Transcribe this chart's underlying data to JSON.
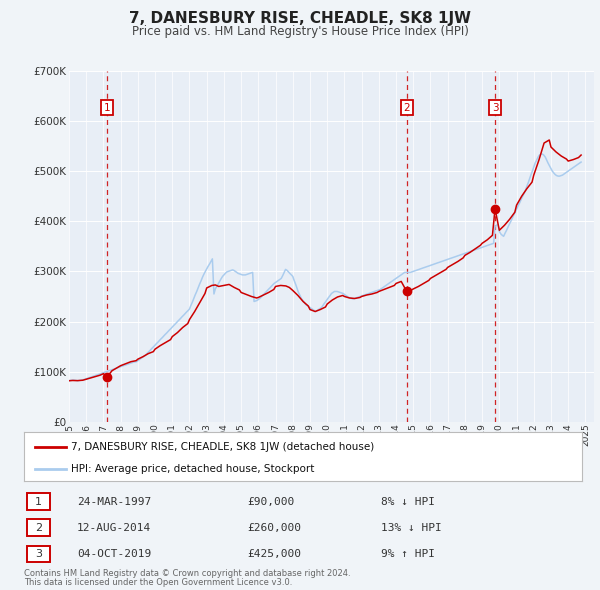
{
  "title": "7, DANESBURY RISE, CHEADLE, SK8 1JW",
  "subtitle": "Price paid vs. HM Land Registry's House Price Index (HPI)",
  "background_color": "#f0f4f8",
  "plot_bg_color": "#e8eef6",
  "grid_color": "#ffffff",
  "ylim": [
    0,
    700000
  ],
  "yticks": [
    0,
    100000,
    200000,
    300000,
    400000,
    500000,
    600000,
    700000
  ],
  "ytick_labels": [
    "£0",
    "£100K",
    "£200K",
    "£300K",
    "£400K",
    "£500K",
    "£600K",
    "£700K"
  ],
  "xlim_start": 1995.0,
  "xlim_end": 2025.5,
  "sale_color": "#cc0000",
  "hpi_color": "#aaccee",
  "purchases": [
    {
      "num": 1,
      "year": 1997.22,
      "price": 90000,
      "label": "1",
      "date": "24-MAR-1997",
      "price_str": "£90,000",
      "pct": "8% ↓ HPI"
    },
    {
      "num": 2,
      "year": 2014.62,
      "price": 260000,
      "label": "2",
      "date": "12-AUG-2014",
      "price_str": "£260,000",
      "pct": "13% ↓ HPI"
    },
    {
      "num": 3,
      "year": 2019.75,
      "price": 425000,
      "label": "3",
      "date": "04-OCT-2019",
      "price_str": "£425,000",
      "pct": "9% ↑ HPI"
    }
  ],
  "hpi_data_years": [
    1995.0,
    1995.08,
    1995.17,
    1995.25,
    1995.33,
    1995.42,
    1995.5,
    1995.58,
    1995.67,
    1995.75,
    1995.83,
    1995.92,
    1996.0,
    1996.08,
    1996.17,
    1996.25,
    1996.33,
    1996.42,
    1996.5,
    1996.58,
    1996.67,
    1996.75,
    1996.83,
    1996.92,
    1997.0,
    1997.08,
    1997.17,
    1997.25,
    1997.33,
    1997.42,
    1997.5,
    1997.58,
    1997.67,
    1997.75,
    1997.83,
    1997.92,
    1998.0,
    1998.08,
    1998.17,
    1998.25,
    1998.33,
    1998.42,
    1998.5,
    1998.58,
    1998.67,
    1998.75,
    1998.83,
    1998.92,
    1999.0,
    1999.08,
    1999.17,
    1999.25,
    1999.33,
    1999.42,
    1999.5,
    1999.58,
    1999.67,
    1999.75,
    1999.83,
    1999.92,
    2000.0,
    2000.08,
    2000.17,
    2000.25,
    2000.33,
    2000.42,
    2000.5,
    2000.58,
    2000.67,
    2000.75,
    2000.83,
    2000.92,
    2001.0,
    2001.08,
    2001.17,
    2001.25,
    2001.33,
    2001.42,
    2001.5,
    2001.58,
    2001.67,
    2001.75,
    2001.83,
    2001.92,
    2002.0,
    2002.08,
    2002.17,
    2002.25,
    2002.33,
    2002.42,
    2002.5,
    2002.58,
    2002.67,
    2002.75,
    2002.83,
    2002.92,
    2003.0,
    2003.08,
    2003.17,
    2003.25,
    2003.33,
    2003.42,
    2003.5,
    2003.58,
    2003.67,
    2003.75,
    2003.83,
    2003.92,
    2004.0,
    2004.08,
    2004.17,
    2004.25,
    2004.33,
    2004.42,
    2004.5,
    2004.58,
    2004.67,
    2004.75,
    2004.83,
    2004.92,
    2005.0,
    2005.08,
    2005.17,
    2005.25,
    2005.33,
    2005.42,
    2005.5,
    2005.58,
    2005.67,
    2005.75,
    2005.83,
    2005.92,
    2006.0,
    2006.08,
    2006.17,
    2006.25,
    2006.33,
    2006.42,
    2006.5,
    2006.58,
    2006.67,
    2006.75,
    2006.83,
    2006.92,
    2007.0,
    2007.08,
    2007.17,
    2007.25,
    2007.33,
    2007.42,
    2007.5,
    2007.58,
    2007.67,
    2007.75,
    2007.83,
    2007.92,
    2008.0,
    2008.08,
    2008.17,
    2008.25,
    2008.33,
    2008.42,
    2008.5,
    2008.58,
    2008.67,
    2008.75,
    2008.83,
    2008.92,
    2009.0,
    2009.08,
    2009.17,
    2009.25,
    2009.33,
    2009.42,
    2009.5,
    2009.58,
    2009.67,
    2009.75,
    2009.83,
    2009.92,
    2010.0,
    2010.08,
    2010.17,
    2010.25,
    2010.33,
    2010.42,
    2010.5,
    2010.58,
    2010.67,
    2010.75,
    2010.83,
    2010.92,
    2011.0,
    2011.08,
    2011.17,
    2011.25,
    2011.33,
    2011.42,
    2011.5,
    2011.58,
    2011.67,
    2011.75,
    2011.83,
    2011.92,
    2012.0,
    2012.08,
    2012.17,
    2012.25,
    2012.33,
    2012.42,
    2012.5,
    2012.58,
    2012.67,
    2012.75,
    2012.83,
    2012.92,
    2013.0,
    2013.08,
    2013.17,
    2013.25,
    2013.33,
    2013.42,
    2013.5,
    2013.58,
    2013.67,
    2013.75,
    2013.83,
    2013.92,
    2014.0,
    2014.08,
    2014.17,
    2014.25,
    2014.33,
    2014.42,
    2014.5,
    2014.58,
    2014.67,
    2014.75,
    2014.83,
    2014.92,
    2015.0,
    2015.08,
    2015.17,
    2015.25,
    2015.33,
    2015.42,
    2015.5,
    2015.58,
    2015.67,
    2015.75,
    2015.83,
    2015.92,
    2016.0,
    2016.08,
    2016.17,
    2016.25,
    2016.33,
    2016.42,
    2016.5,
    2016.58,
    2016.67,
    2016.75,
    2016.83,
    2016.92,
    2017.0,
    2017.08,
    2017.17,
    2017.25,
    2017.33,
    2017.42,
    2017.5,
    2017.58,
    2017.67,
    2017.75,
    2017.83,
    2017.92,
    2018.0,
    2018.08,
    2018.17,
    2018.25,
    2018.33,
    2018.42,
    2018.5,
    2018.58,
    2018.67,
    2018.75,
    2018.83,
    2018.92,
    2019.0,
    2019.08,
    2019.17,
    2019.25,
    2019.33,
    2019.42,
    2019.5,
    2019.58,
    2019.67,
    2019.75,
    2019.83,
    2019.92,
    2020.0,
    2020.08,
    2020.17,
    2020.25,
    2020.33,
    2020.42,
    2020.5,
    2020.58,
    2020.67,
    2020.75,
    2020.83,
    2020.92,
    2021.0,
    2021.08,
    2021.17,
    2021.25,
    2021.33,
    2021.42,
    2021.5,
    2021.58,
    2021.67,
    2021.75,
    2021.83,
    2021.92,
    2022.0,
    2022.08,
    2022.17,
    2022.25,
    2022.33,
    2022.42,
    2022.5,
    2022.58,
    2022.67,
    2022.75,
    2022.83,
    2022.92,
    2023.0,
    2023.08,
    2023.17,
    2023.25,
    2023.33,
    2023.42,
    2023.5,
    2023.58,
    2023.67,
    2023.75,
    2023.83,
    2023.92,
    2024.0,
    2024.08,
    2024.17,
    2024.25,
    2024.33,
    2024.42,
    2024.5,
    2024.58,
    2024.67,
    2024.75
  ],
  "hpi_data_values": [
    82000,
    82500,
    83000,
    83500,
    83000,
    82500,
    82000,
    82500,
    83000,
    83500,
    84000,
    85000,
    86000,
    87000,
    88000,
    89000,
    90000,
    91000,
    92000,
    93000,
    94000,
    95000,
    96000,
    97000,
    98000,
    99000,
    100000,
    101000,
    102000,
    103000,
    104000,
    105000,
    106000,
    107000,
    108000,
    109000,
    110000,
    111000,
    112000,
    113000,
    114000,
    115000,
    116000,
    117000,
    118000,
    119000,
    119500,
    120000,
    122000,
    124000,
    126000,
    128000,
    130000,
    132000,
    135000,
    138000,
    141000,
    144000,
    147000,
    150000,
    153000,
    156000,
    159000,
    162000,
    165000,
    168000,
    171000,
    174000,
    177000,
    180000,
    183000,
    186000,
    189000,
    192000,
    195000,
    198000,
    201000,
    204000,
    207000,
    210000,
    213000,
    216000,
    219000,
    222000,
    225000,
    232000,
    239000,
    246000,
    253000,
    260000,
    267000,
    274000,
    281000,
    288000,
    294000,
    300000,
    305000,
    310000,
    315000,
    320000,
    325000,
    255000,
    265000,
    270000,
    275000,
    280000,
    285000,
    290000,
    293000,
    296000,
    299000,
    300000,
    301000,
    302000,
    303000,
    302000,
    300000,
    298000,
    296000,
    295000,
    294000,
    293000,
    293000,
    293000,
    294000,
    295000,
    296000,
    297000,
    298000,
    240000,
    241000,
    242000,
    244000,
    246000,
    249000,
    252000,
    255000,
    258000,
    261000,
    264000,
    267000,
    270000,
    273000,
    276000,
    278000,
    280000,
    282000,
    284000,
    286000,
    292000,
    298000,
    304000,
    302000,
    299000,
    296000,
    293000,
    290000,
    282000,
    274000,
    266000,
    258000,
    252000,
    246000,
    242000,
    238000,
    234000,
    232000,
    230000,
    228000,
    226000,
    224000,
    222000,
    220000,
    222000,
    224000,
    226000,
    228000,
    232000,
    236000,
    240000,
    244000,
    248000,
    252000,
    256000,
    258000,
    260000,
    260000,
    260000,
    259000,
    258000,
    257000,
    256000,
    254000,
    252000,
    250000,
    248000,
    247000,
    246000,
    245000,
    246000,
    247000,
    248000,
    249000,
    250000,
    251000,
    252000,
    253000,
    254000,
    255000,
    256000,
    257000,
    258000,
    259000,
    260000,
    261000,
    262000,
    263000,
    264000,
    266000,
    268000,
    270000,
    272000,
    274000,
    276000,
    278000,
    280000,
    282000,
    284000,
    286000,
    288000,
    290000,
    292000,
    294000,
    296000,
    298000,
    298000,
    298000,
    298000,
    298000,
    299000,
    300000,
    301000,
    302000,
    303000,
    304000,
    305000,
    306000,
    307000,
    308000,
    309000,
    310000,
    311000,
    312000,
    313000,
    314000,
    315000,
    316000,
    317000,
    318000,
    319000,
    320000,
    321000,
    322000,
    323000,
    324000,
    325000,
    326000,
    327000,
    328000,
    329000,
    330000,
    331000,
    332000,
    333000,
    334000,
    335000,
    336000,
    337000,
    338000,
    339000,
    340000,
    341000,
    342000,
    343000,
    344000,
    345000,
    346000,
    347000,
    348000,
    349000,
    350000,
    351000,
    352000,
    353000,
    354000,
    355000,
    356000,
    390000,
    392000,
    394000,
    380000,
    375000,
    372000,
    370000,
    376000,
    382000,
    388000,
    394000,
    400000,
    406000,
    412000,
    418000,
    424000,
    430000,
    436000,
    442000,
    448000,
    454000,
    460000,
    468000,
    476000,
    484000,
    492000,
    500000,
    508000,
    516000,
    522000,
    528000,
    532000,
    534000,
    534000,
    532000,
    528000,
    522000,
    516000,
    510000,
    505000,
    500000,
    496000,
    493000,
    491000,
    490000,
    490000,
    491000,
    492000,
    494000,
    496000,
    498000,
    500000,
    502000,
    504000,
    506000,
    508000,
    510000,
    512000,
    514000,
    516000,
    518000
  ],
  "price_data_years": [
    1995.0,
    1995.2,
    1995.5,
    1995.8,
    1996.0,
    1996.2,
    1996.5,
    1996.8,
    1997.0,
    1997.22,
    1997.5,
    1997.8,
    1998.0,
    1998.3,
    1998.6,
    1998.9,
    1999.0,
    1999.3,
    1999.6,
    1999.9,
    2000.0,
    2000.3,
    2000.6,
    2000.9,
    2001.0,
    2001.3,
    2001.6,
    2001.9,
    2002.0,
    2002.3,
    2002.6,
    2002.9,
    2003.0,
    2003.3,
    2003.5,
    2003.7,
    2004.0,
    2004.3,
    2004.6,
    2004.9,
    2005.0,
    2005.3,
    2005.6,
    2005.9,
    2006.0,
    2006.3,
    2006.6,
    2006.9,
    2007.0,
    2007.3,
    2007.6,
    2007.8,
    2008.0,
    2008.3,
    2008.6,
    2008.9,
    2009.0,
    2009.3,
    2009.6,
    2009.9,
    2010.0,
    2010.3,
    2010.6,
    2010.9,
    2011.0,
    2011.3,
    2011.6,
    2011.9,
    2012.0,
    2012.3,
    2012.6,
    2012.9,
    2013.0,
    2013.3,
    2013.6,
    2013.9,
    2014.0,
    2014.3,
    2014.62,
    2014.9,
    2015.0,
    2015.3,
    2015.6,
    2015.9,
    2016.0,
    2016.3,
    2016.6,
    2016.9,
    2017.0,
    2017.3,
    2017.6,
    2017.9,
    2018.0,
    2018.3,
    2018.6,
    2018.9,
    2019.0,
    2019.3,
    2019.6,
    2019.75,
    2020.0,
    2020.3,
    2020.6,
    2020.9,
    2021.0,
    2021.3,
    2021.6,
    2021.9,
    2022.0,
    2022.3,
    2022.6,
    2022.9,
    2023.0,
    2023.3,
    2023.6,
    2023.9,
    2024.0,
    2024.3,
    2024.6,
    2024.75
  ],
  "price_data_values": [
    82000,
    82500,
    82200,
    83000,
    85000,
    87000,
    90000,
    93000,
    96000,
    90000,
    102000,
    108000,
    112000,
    116000,
    120000,
    122000,
    125000,
    130000,
    136000,
    140000,
    145000,
    152000,
    158000,
    164000,
    170000,
    178000,
    188000,
    196000,
    204000,
    220000,
    238000,
    256000,
    267000,
    272000,
    273000,
    270000,
    272000,
    274000,
    268000,
    263000,
    258000,
    254000,
    250000,
    247000,
    248000,
    253000,
    258000,
    264000,
    270000,
    272000,
    271000,
    268000,
    262000,
    252000,
    240000,
    231000,
    224000,
    220000,
    224000,
    229000,
    235000,
    243000,
    249000,
    252000,
    250000,
    247000,
    246000,
    248000,
    250000,
    253000,
    255000,
    258000,
    260000,
    264000,
    268000,
    272000,
    276000,
    280000,
    260000,
    263000,
    265000,
    270000,
    276000,
    282000,
    286000,
    292000,
    298000,
    304000,
    308000,
    314000,
    320000,
    327000,
    332000,
    338000,
    345000,
    352000,
    356000,
    363000,
    372000,
    425000,
    382000,
    392000,
    404000,
    418000,
    432000,
    450000,
    465000,
    478000,
    492000,
    522000,
    556000,
    562000,
    548000,
    538000,
    530000,
    524000,
    520000,
    523000,
    527000,
    532000
  ],
  "legend_label_sale": "7, DANESBURY RISE, CHEADLE, SK8 1JW (detached house)",
  "legend_label_hpi": "HPI: Average price, detached house, Stockport",
  "footer1": "Contains HM Land Registry data © Crown copyright and database right 2024.",
  "footer2": "This data is licensed under the Open Government Licence v3.0."
}
